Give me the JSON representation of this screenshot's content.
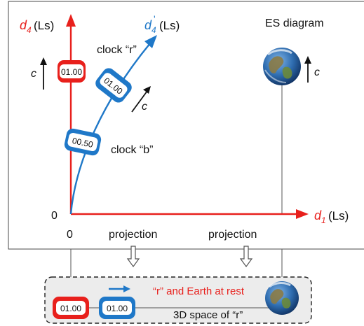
{
  "top": {
    "title": "ES diagram",
    "axis_d4": {
      "prefix": "d",
      "sub": "4",
      "unit": " (Ls)"
    },
    "axis_d4p": {
      "prefix": "d",
      "sub": "4",
      "prime": "'",
      "unit": " (Ls)"
    },
    "axis_d1": {
      "prefix": "d",
      "sub": "1",
      "unit": " (Ls)"
    },
    "origin_y": "0",
    "origin_x": "0",
    "clock_r_label": "clock “r”",
    "clock_b_label": "clock “b”",
    "clock_r_value": "01.00",
    "clock_b_value_upper": "01.00",
    "clock_b_value_lower": "00.50",
    "c_label": "c",
    "projection_left": "projection",
    "projection_right": "projection"
  },
  "bottom": {
    "caption_red": "“r” and Earth at rest",
    "caption": "3D space of “r”",
    "clock_r_value": "01.00",
    "clock_b_value": "01.00"
  },
  "colors": {
    "red": "#e8201c",
    "blue": "#1f78c8",
    "panel_bottom": "#ececec"
  }
}
